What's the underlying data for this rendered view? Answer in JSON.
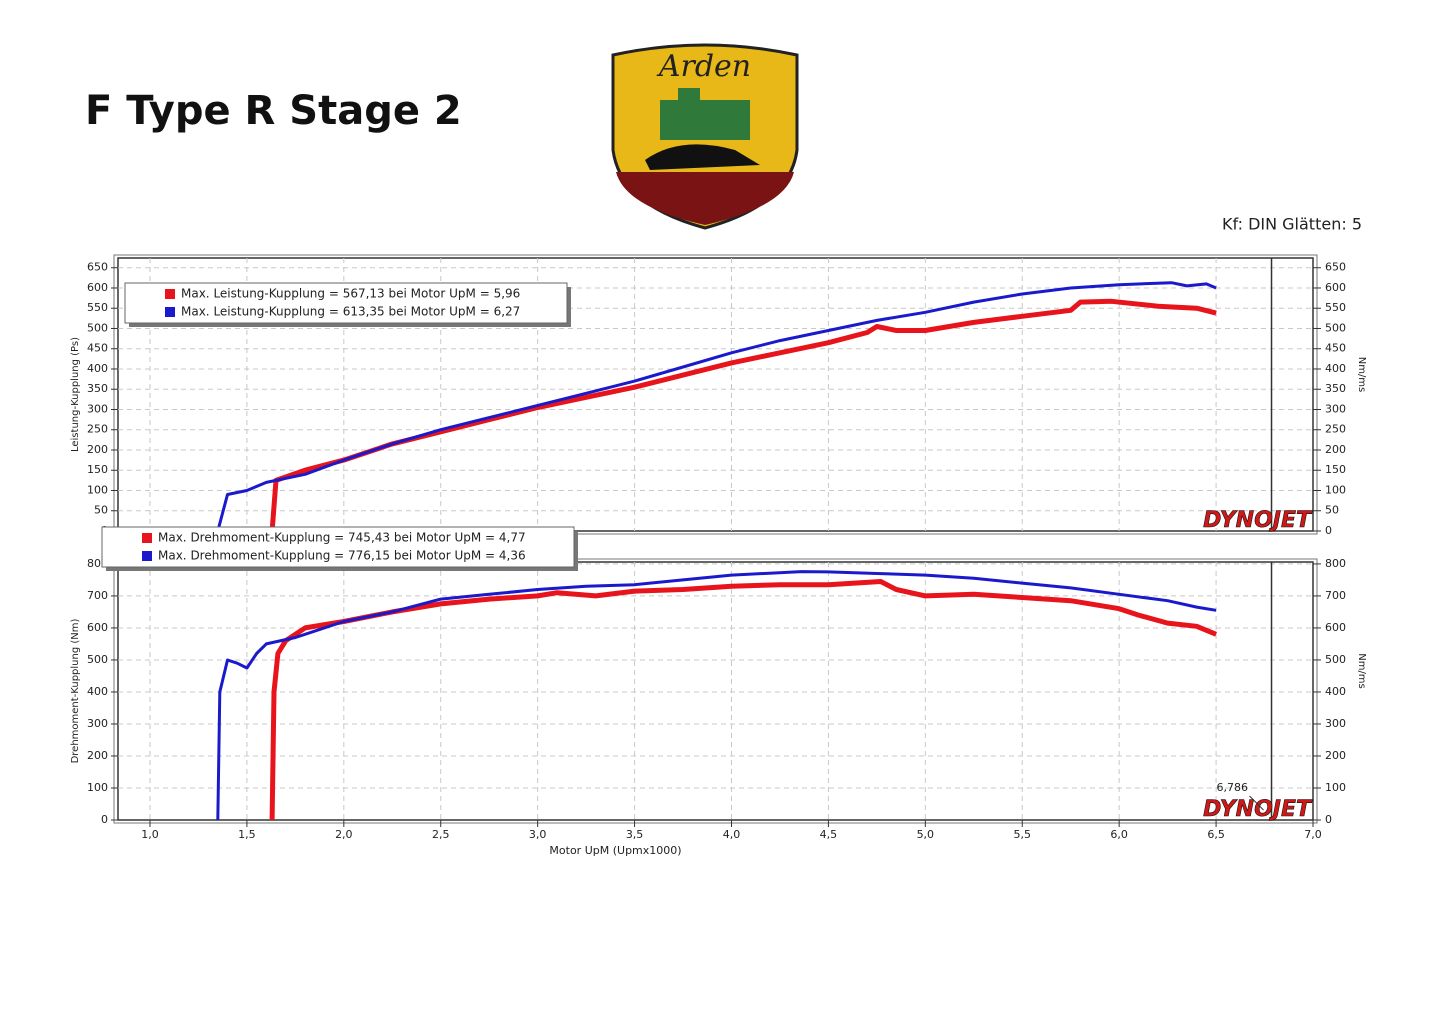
{
  "header": {
    "title": "F Type R Stage 2",
    "logo_text": "Arden",
    "settings": "Kf: DIN Glätten: 5"
  },
  "chart_data": [
    {
      "type": "line",
      "ylabel": "Leistung-Kupplung (Ps)",
      "y2label": "Nm/ms",
      "watermark": "DYNOJET",
      "xlim": [
        0.835,
        7.0
      ],
      "ylim": [
        0,
        674
      ],
      "y2lim": [
        0,
        674
      ],
      "yticks": [
        0,
        50,
        100,
        150,
        200,
        250,
        300,
        350,
        400,
        450,
        500,
        550,
        600,
        650
      ],
      "y2ticks": [
        0,
        50,
        100,
        150,
        200,
        250,
        300,
        350,
        400,
        450,
        500,
        550,
        600,
        650
      ],
      "grid": true,
      "legend": "upper left",
      "series": [
        {
          "name": "Max. Leistung-Kupplung = 567,13 bei Motor UpM = 5,96",
          "color": "#e8141c",
          "x": [
            1.63,
            1.65,
            1.8,
            2.0,
            2.25,
            2.5,
            2.75,
            3.0,
            3.25,
            3.5,
            3.75,
            4.0,
            4.25,
            4.5,
            4.7,
            4.75,
            4.85,
            5.0,
            5.25,
            5.5,
            5.75,
            5.8,
            5.96,
            6.2,
            6.4,
            6.5
          ],
          "values": [
            0,
            125,
            150,
            175,
            215,
            245,
            275,
            305,
            330,
            355,
            385,
            415,
            440,
            465,
            490,
            505,
            495,
            495,
            515,
            530,
            545,
            565,
            567,
            555,
            550,
            538
          ]
        },
        {
          "name": "Max. Leistung-Kupplung = 613,35 bei Motor UpM = 6,27",
          "color": "#1a1acc",
          "x": [
            1.35,
            1.4,
            1.5,
            1.6,
            1.8,
            2.0,
            2.25,
            2.5,
            2.75,
            3.0,
            3.25,
            3.5,
            3.75,
            4.0,
            4.25,
            4.5,
            4.75,
            5.0,
            5.25,
            5.5,
            5.75,
            6.0,
            6.27,
            6.35,
            6.45,
            6.5
          ],
          "values": [
            0,
            90,
            100,
            120,
            140,
            175,
            215,
            250,
            280,
            310,
            340,
            370,
            405,
            440,
            470,
            495,
            520,
            540,
            565,
            585,
            600,
            608,
            613,
            605,
            610,
            600
          ]
        }
      ]
    },
    {
      "type": "line",
      "ylabel": "Drehmoment-Kupplung (Nm)",
      "y2label": "Nm/ms",
      "watermark": "DYNOJET",
      "xlabel": "Motor UpM (Upmx1000)",
      "xlim": [
        0.835,
        7.0
      ],
      "ylim": [
        0,
        806
      ],
      "y2lim": [
        0,
        806
      ],
      "xticks": [
        {
          "value": 1.0,
          "label": "1,0"
        },
        {
          "value": 1.5,
          "label": "1,5"
        },
        {
          "value": 2.0,
          "label": "2,0"
        },
        {
          "value": 2.5,
          "label": "2,5"
        },
        {
          "value": 3.0,
          "label": "3,0"
        },
        {
          "value": 3.5,
          "label": "3,5"
        },
        {
          "value": 4.0,
          "label": "4,0"
        },
        {
          "value": 4.5,
          "label": "4,5"
        },
        {
          "value": 5.0,
          "label": "5,0"
        },
        {
          "value": 5.5,
          "label": "5,5"
        },
        {
          "value": 6.0,
          "label": "6,0"
        },
        {
          "value": 6.5,
          "label": "6,5"
        },
        {
          "value": 7.0,
          "label": "7,0"
        }
      ],
      "yticks": [
        0,
        100,
        200,
        300,
        400,
        500,
        600,
        700,
        800
      ],
      "y2ticks": [
        0,
        100,
        200,
        300,
        400,
        500,
        600,
        700,
        800
      ],
      "marker": {
        "value": 6.786,
        "label": "6,786"
      },
      "grid": true,
      "legend": "upper left",
      "series": [
        {
          "name": "Max. Drehmoment-Kupplung = 745,43 bei Motor UpM = 4,77",
          "color": "#e8141c",
          "x": [
            1.63,
            1.64,
            1.66,
            1.7,
            1.8,
            2.0,
            2.25,
            2.5,
            2.75,
            3.0,
            3.1,
            3.3,
            3.5,
            3.75,
            4.0,
            4.25,
            4.5,
            4.77,
            4.85,
            5.0,
            5.25,
            5.5,
            5.75,
            6.0,
            6.1,
            6.25,
            6.4,
            6.5
          ],
          "values": [
            0,
            400,
            520,
            560,
            600,
            620,
            650,
            675,
            690,
            700,
            710,
            700,
            715,
            720,
            730,
            735,
            735,
            745,
            720,
            700,
            705,
            695,
            685,
            660,
            640,
            615,
            605,
            580
          ]
        },
        {
          "name": "Max. Drehmoment-Kupplung = 776,15 bei Motor UpM = 4,36",
          "color": "#1a1acc",
          "x": [
            1.35,
            1.36,
            1.4,
            1.45,
            1.5,
            1.55,
            1.6,
            1.75,
            2.0,
            2.25,
            2.5,
            2.75,
            3.0,
            3.25,
            3.5,
            3.75,
            4.0,
            4.36,
            4.5,
            4.75,
            5.0,
            5.25,
            5.5,
            5.75,
            6.0,
            6.25,
            6.4,
            6.5
          ],
          "values": [
            0,
            400,
            500,
            490,
            475,
            520,
            550,
            570,
            620,
            650,
            690,
            705,
            720,
            730,
            735,
            750,
            765,
            776,
            775,
            770,
            765,
            755,
            740,
            725,
            705,
            685,
            665,
            655
          ]
        }
      ]
    }
  ]
}
